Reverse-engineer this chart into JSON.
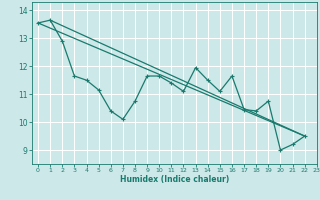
{
  "title": "",
  "xlabel": "Humidex (Indice chaleur)",
  "background_color": "#cce8e8",
  "grid_color": "#ffffff",
  "line_color": "#1a7a6e",
  "xlim": [
    -0.5,
    23
  ],
  "ylim": [
    8.5,
    14.3
  ],
  "yticks": [
    9,
    10,
    11,
    12,
    13,
    14
  ],
  "xticks": [
    0,
    1,
    2,
    3,
    4,
    5,
    6,
    7,
    8,
    9,
    10,
    11,
    12,
    13,
    14,
    15,
    16,
    17,
    18,
    19,
    20,
    21,
    22,
    23
  ],
  "zigzag_x": [
    0,
    1,
    2,
    3,
    4,
    5,
    6,
    7,
    8,
    9,
    10,
    11,
    12,
    13,
    14,
    15,
    16,
    17,
    18,
    19,
    20,
    21,
    22
  ],
  "zigzag_y": [
    13.55,
    13.65,
    12.9,
    11.65,
    11.5,
    11.15,
    10.4,
    10.1,
    10.75,
    11.65,
    11.65,
    11.4,
    11.1,
    11.95,
    11.5,
    11.1,
    11.65,
    10.45,
    10.4,
    10.75,
    9.0,
    9.2,
    9.5
  ],
  "trend1_x": [
    0,
    22
  ],
  "trend1_y": [
    13.55,
    9.5
  ],
  "trend2_x": [
    1,
    22
  ],
  "trend2_y": [
    13.65,
    9.5
  ]
}
